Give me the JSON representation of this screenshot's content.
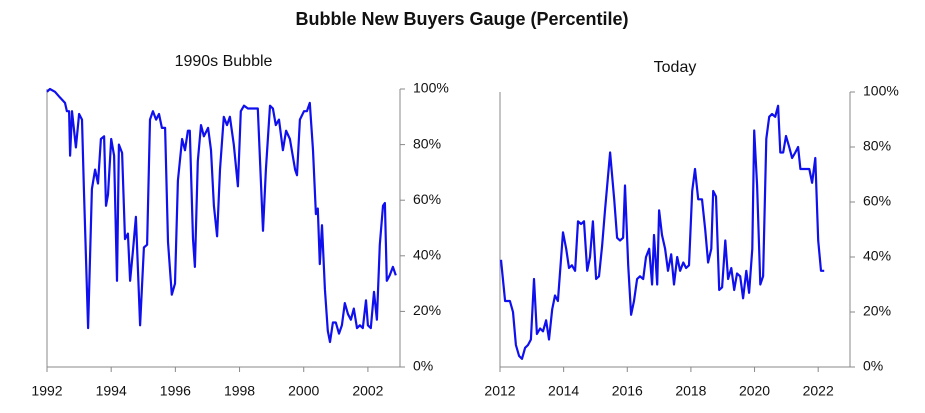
{
  "title": "Bubble New Buyers Gauge (Percentile)",
  "chart_data": [
    {
      "type": "line",
      "title": "1990s Bubble",
      "color": "#1010ee",
      "x": [
        1992.0,
        1992.09,
        1992.25,
        1992.4,
        1992.56,
        1992.62,
        1992.69,
        1992.72,
        1992.78,
        1992.9,
        1993.0,
        1993.09,
        1993.15,
        1993.28,
        1993.4,
        1993.5,
        1993.59,
        1993.68,
        1993.78,
        1993.84,
        1993.9,
        1994.0,
        1994.09,
        1994.18,
        1994.24,
        1994.34,
        1994.43,
        1994.52,
        1994.59,
        1994.68,
        1994.77,
        1994.9,
        1995.02,
        1995.12,
        1995.21,
        1995.3,
        1995.4,
        1995.49,
        1995.58,
        1995.68,
        1995.77,
        1995.89,
        1995.99,
        1996.08,
        1996.21,
        1996.3,
        1996.39,
        1996.45,
        1996.55,
        1996.61,
        1996.7,
        1996.8,
        1996.89,
        1997.02,
        1997.11,
        1997.2,
        1997.3,
        1997.39,
        1997.51,
        1997.61,
        1997.7,
        1997.82,
        1997.95,
        1998.04,
        1998.14,
        1998.26,
        1998.42,
        1998.57,
        1998.73,
        1998.82,
        1998.95,
        1999.04,
        1999.13,
        1999.23,
        1999.35,
        1999.45,
        1999.57,
        1999.73,
        1999.79,
        1999.88,
        2000.01,
        2000.1,
        2000.19,
        2000.29,
        2000.38,
        2000.44,
        2000.5,
        2000.57,
        2000.66,
        2000.75,
        2000.82,
        2000.91,
        2001.0,
        2001.1,
        2001.19,
        2001.28,
        2001.38,
        2001.47,
        2001.56,
        2001.66,
        2001.75,
        2001.84,
        2001.94,
        2002.0,
        2002.09,
        2002.19,
        2002.28,
        2002.37,
        2002.47,
        2002.53,
        2002.59,
        2002.68,
        2002.78,
        2002.87
      ],
      "values": [
        99,
        100,
        99,
        97,
        95,
        92,
        92,
        76,
        92,
        79,
        91,
        89,
        64,
        14,
        64,
        71,
        66,
        82,
        83,
        58,
        62,
        82,
        76,
        31,
        80,
        77,
        46,
        48,
        31,
        42,
        54,
        15,
        43,
        44,
        89,
        92,
        89,
        91,
        86,
        86,
        45,
        26,
        30,
        67,
        82,
        78,
        85,
        85,
        46,
        36,
        74,
        87,
        83,
        86,
        78,
        58,
        47,
        71,
        90,
        87,
        90,
        80,
        65,
        92,
        94,
        93,
        93,
        93,
        49,
        71,
        94,
        93,
        87,
        89,
        78,
        85,
        82,
        71,
        69,
        89,
        92,
        92,
        95,
        78,
        55,
        57,
        37,
        51,
        28,
        13,
        9,
        16,
        16,
        12,
        15,
        23,
        19,
        17,
        21,
        14,
        15,
        14,
        24,
        15,
        14,
        27,
        17,
        44,
        58,
        59,
        31,
        33,
        36,
        33
      ],
      "xlim": [
        1992,
        2003
      ],
      "xticks": [
        1992,
        1994,
        1996,
        1998,
        2000,
        2002
      ],
      "ylim": [
        0,
        100
      ],
      "yticks": [
        {
          "value": 0,
          "label": "0%"
        },
        {
          "value": 20,
          "label": "20%"
        },
        {
          "value": 40,
          "label": "40%"
        },
        {
          "value": 60,
          "label": "60%"
        },
        {
          "value": 80,
          "label": "80%"
        },
        {
          "value": 100,
          "label": "100%"
        }
      ]
    },
    {
      "type": "line",
      "title": "Today",
      "color": "#1010ee",
      "x": [
        2012.03,
        2012.16,
        2012.31,
        2012.41,
        2012.5,
        2012.6,
        2012.69,
        2012.79,
        2012.88,
        2012.97,
        2013.07,
        2013.16,
        2013.26,
        2013.35,
        2013.45,
        2013.54,
        2013.64,
        2013.73,
        2013.82,
        2013.98,
        2014.08,
        2014.17,
        2014.26,
        2014.36,
        2014.45,
        2014.55,
        2014.64,
        2014.74,
        2014.83,
        2014.92,
        2015.02,
        2015.11,
        2015.21,
        2015.3,
        2015.46,
        2015.59,
        2015.68,
        2015.77,
        2015.87,
        2015.93,
        2016.03,
        2016.12,
        2016.21,
        2016.31,
        2016.4,
        2016.5,
        2016.59,
        2016.69,
        2016.78,
        2016.84,
        2016.94,
        2017.0,
        2017.09,
        2017.19,
        2017.28,
        2017.38,
        2017.47,
        2017.57,
        2017.66,
        2017.76,
        2017.85,
        2017.94,
        2018.04,
        2018.13,
        2018.23,
        2018.35,
        2018.45,
        2018.54,
        2018.64,
        2018.7,
        2018.79,
        2018.89,
        2018.98,
        2019.08,
        2019.17,
        2019.27,
        2019.36,
        2019.45,
        2019.55,
        2019.64,
        2019.74,
        2019.83,
        2019.93,
        2019.99,
        2020.08,
        2020.18,
        2020.27,
        2020.37,
        2020.46,
        2020.55,
        2020.65,
        2020.74,
        2020.81,
        2020.9,
        2020.99,
        2021.09,
        2021.18,
        2021.28,
        2021.37,
        2021.44,
        2021.53,
        2021.62,
        2021.72,
        2021.81,
        2021.91,
        2022.0,
        2022.09,
        2022.19
      ],
      "values": [
        39,
        24,
        24,
        20,
        8,
        4,
        3,
        7,
        8,
        10,
        32,
        12,
        14,
        13,
        17,
        10,
        21,
        26,
        24,
        49,
        43,
        36,
        37,
        35,
        53,
        52,
        53,
        35,
        40,
        53,
        32,
        33,
        44,
        57,
        78,
        61,
        47,
        46,
        47,
        66,
        37,
        19,
        24,
        32,
        33,
        32,
        40,
        43,
        30,
        48,
        30,
        57,
        48,
        43,
        35,
        41,
        30,
        40,
        35,
        38,
        36,
        37,
        64,
        72,
        61,
        61,
        50,
        38,
        43,
        64,
        62,
        28,
        29,
        46,
        32,
        36,
        28,
        34,
        33,
        25,
        35,
        27,
        43,
        86,
        66,
        30,
        33,
        83,
        91,
        92,
        91,
        95,
        78,
        78,
        84,
        80,
        76,
        78,
        80,
        72,
        72,
        72,
        72,
        67,
        76,
        46,
        35,
        35
      ],
      "xlim": [
        2012,
        2023
      ],
      "xticks": [
        2012,
        2014,
        2016,
        2018,
        2020,
        2022
      ],
      "ylim": [
        0,
        100
      ],
      "yticks": [
        {
          "value": 0,
          "label": "0%"
        },
        {
          "value": 20,
          "label": "20%"
        },
        {
          "value": 40,
          "label": "40%"
        },
        {
          "value": 60,
          "label": "60%"
        },
        {
          "value": 80,
          "label": "80%"
        },
        {
          "value": 100,
          "label": "100%"
        }
      ]
    }
  ]
}
